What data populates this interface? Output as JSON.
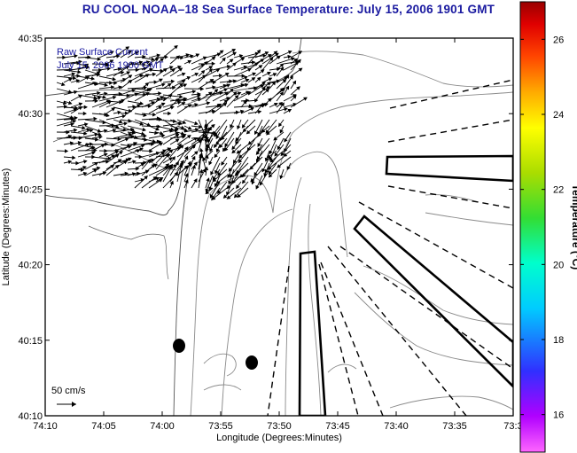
{
  "title": "RU COOL  NOAA–18  Sea Surface Temperature:  July 15, 2006 1901 GMT",
  "xlabel": "Longitude (Degrees:Minutes)",
  "ylabel": "Latitude (Degrees:Minutes)",
  "x_ticks": [
    "74:10",
    "74:05",
    "74:00",
    "73:55",
    "73:50",
    "73:45",
    "73:40",
    "73:35",
    "73:3"
  ],
  "y_ticks": [
    "40:35",
    "40:30",
    "40:25",
    "40:20",
    "40:15",
    "40:10"
  ],
  "inset_line1": "Raw Surface Current",
  "inset_line2": "July 15, 2006 1900 GMT",
  "scale_label": "50 cm/s",
  "colorbar": {
    "label": "Temperature (°C)",
    "ticks": [
      "26",
      "24",
      "22",
      "20",
      "18",
      "16"
    ],
    "range": [
      15,
      27
    ]
  },
  "colors": {
    "title": "#1a1aa0",
    "contour": "#888888",
    "frame": "#000000"
  },
  "markers": [
    {
      "lon": "74:00",
      "lat": "40:15"
    },
    {
      "lon": "73:57",
      "lat": "40:13"
    }
  ]
}
